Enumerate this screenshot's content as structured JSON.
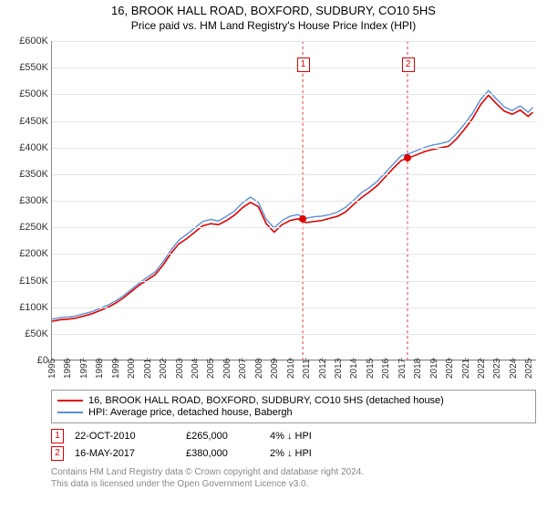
{
  "title": {
    "main": "16, BROOK HALL ROAD, BOXFORD, SUDBURY, CO10 5HS",
    "sub": "Price paid vs. HM Land Registry's House Price Index (HPI)"
  },
  "chart": {
    "y_axis": {
      "min": 0,
      "max": 600000,
      "step": 50000,
      "labels": [
        "£0",
        "£50K",
        "£100K",
        "£150K",
        "£200K",
        "£250K",
        "£300K",
        "£350K",
        "£400K",
        "£450K",
        "£500K",
        "£550K",
        "£600K"
      ]
    },
    "x_axis": {
      "min": 1995,
      "max": 2025.5,
      "years": [
        1995,
        1996,
        1997,
        1998,
        1999,
        2000,
        2001,
        2002,
        2003,
        2004,
        2005,
        2006,
        2007,
        2008,
        2009,
        2010,
        2011,
        2012,
        2013,
        2014,
        2015,
        2016,
        2017,
        2018,
        2019,
        2020,
        2021,
        2022,
        2023,
        2024,
        2025
      ]
    },
    "grid_color": "#e5e5e5",
    "axis_color": "#888888",
    "background": "#ffffff",
    "series": [
      {
        "name": "property",
        "label": "16, BROOK HALL ROAD, BOXFORD, SUDBURY, CO10 5HS (detached house)",
        "color": "#dd0000",
        "width": 1.6,
        "points": [
          [
            1995,
            72000
          ],
          [
            1995.5,
            75000
          ],
          [
            1996,
            76000
          ],
          [
            1996.5,
            78000
          ],
          [
            1997,
            82000
          ],
          [
            1997.5,
            86000
          ],
          [
            1998,
            92000
          ],
          [
            1998.5,
            98000
          ],
          [
            1999,
            106000
          ],
          [
            1999.5,
            116000
          ],
          [
            2000,
            128000
          ],
          [
            2000.5,
            140000
          ],
          [
            2001,
            150000
          ],
          [
            2001.5,
            160000
          ],
          [
            2002,
            178000
          ],
          [
            2002.5,
            200000
          ],
          [
            2003,
            218000
          ],
          [
            2003.5,
            228000
          ],
          [
            2004,
            240000
          ],
          [
            2004.5,
            252000
          ],
          [
            2005,
            256000
          ],
          [
            2005.5,
            254000
          ],
          [
            2006,
            262000
          ],
          [
            2006.5,
            272000
          ],
          [
            2007,
            286000
          ],
          [
            2007.5,
            296000
          ],
          [
            2008,
            288000
          ],
          [
            2008.5,
            256000
          ],
          [
            2009,
            240000
          ],
          [
            2009.5,
            254000
          ],
          [
            2010,
            262000
          ],
          [
            2010.5,
            265000
          ],
          [
            2011,
            258000
          ],
          [
            2011.5,
            260000
          ],
          [
            2012,
            262000
          ],
          [
            2012.5,
            266000
          ],
          [
            2013,
            270000
          ],
          [
            2013.5,
            278000
          ],
          [
            2014,
            292000
          ],
          [
            2014.5,
            305000
          ],
          [
            2015,
            316000
          ],
          [
            2015.5,
            328000
          ],
          [
            2016,
            344000
          ],
          [
            2016.5,
            360000
          ],
          [
            2017,
            375000
          ],
          [
            2017.5,
            380000
          ],
          [
            2018,
            386000
          ],
          [
            2018.5,
            392000
          ],
          [
            2019,
            396000
          ],
          [
            2019.5,
            399000
          ],
          [
            2020,
            402000
          ],
          [
            2020.5,
            416000
          ],
          [
            2021,
            434000
          ],
          [
            2021.5,
            454000
          ],
          [
            2022,
            480000
          ],
          [
            2022.5,
            498000
          ],
          [
            2023,
            482000
          ],
          [
            2023.5,
            468000
          ],
          [
            2024,
            462000
          ],
          [
            2024.5,
            470000
          ],
          [
            2025,
            458000
          ],
          [
            2025.3,
            466000
          ]
        ]
      },
      {
        "name": "hpi",
        "label": "HPI: Average price, detached house, Babergh",
        "color": "#5b8fd6",
        "width": 1.4,
        "points": [
          [
            1995,
            76000
          ],
          [
            1995.5,
            79000
          ],
          [
            1996,
            80000
          ],
          [
            1996.5,
            82000
          ],
          [
            1997,
            86000
          ],
          [
            1997.5,
            90000
          ],
          [
            1998,
            96000
          ],
          [
            1998.5,
            102000
          ],
          [
            1999,
            110000
          ],
          [
            1999.5,
            120000
          ],
          [
            2000,
            132000
          ],
          [
            2000.5,
            144000
          ],
          [
            2001,
            155000
          ],
          [
            2001.5,
            165000
          ],
          [
            2002,
            184000
          ],
          [
            2002.5,
            206000
          ],
          [
            2003,
            225000
          ],
          [
            2003.5,
            236000
          ],
          [
            2004,
            248000
          ],
          [
            2004.5,
            260000
          ],
          [
            2005,
            264000
          ],
          [
            2005.5,
            261000
          ],
          [
            2006,
            270000
          ],
          [
            2006.5,
            280000
          ],
          [
            2007,
            295000
          ],
          [
            2007.5,
            306000
          ],
          [
            2008,
            296000
          ],
          [
            2008.5,
            264000
          ],
          [
            2009,
            248000
          ],
          [
            2009.5,
            262000
          ],
          [
            2010,
            270000
          ],
          [
            2010.5,
            273000
          ],
          [
            2011,
            266000
          ],
          [
            2011.5,
            269000
          ],
          [
            2012,
            270000
          ],
          [
            2012.5,
            273000
          ],
          [
            2013,
            278000
          ],
          [
            2013.5,
            287000
          ],
          [
            2014,
            300000
          ],
          [
            2014.5,
            314000
          ],
          [
            2015,
            324000
          ],
          [
            2015.5,
            336000
          ],
          [
            2016,
            352000
          ],
          [
            2016.5,
            368000
          ],
          [
            2017,
            384000
          ],
          [
            2017.5,
            388000
          ],
          [
            2018,
            394000
          ],
          [
            2018.5,
            400000
          ],
          [
            2019,
            404000
          ],
          [
            2019.5,
            407000
          ],
          [
            2020,
            411000
          ],
          [
            2020.5,
            426000
          ],
          [
            2021,
            444000
          ],
          [
            2021.5,
            464000
          ],
          [
            2022,
            490000
          ],
          [
            2022.5,
            507000
          ],
          [
            2023,
            491000
          ],
          [
            2023.5,
            476000
          ],
          [
            2024,
            469000
          ],
          [
            2024.5,
            478000
          ],
          [
            2025,
            466000
          ],
          [
            2025.3,
            475000
          ]
        ]
      }
    ],
    "markers": [
      {
        "id": "1",
        "year": 2010.8,
        "value": 265000
      },
      {
        "id": "2",
        "year": 2017.4,
        "value": 380000
      }
    ],
    "marker_line_color": "#dd0000",
    "marker_dot_color": "#dd0000"
  },
  "legend": {
    "series": [
      {
        "color": "#dd0000",
        "label": "16, BROOK HALL ROAD, BOXFORD, SUDBURY, CO10 5HS (detached house)"
      },
      {
        "color": "#5b8fd6",
        "label": "HPI: Average price, detached house, Babergh"
      }
    ]
  },
  "sales": [
    {
      "id": "1",
      "date": "22-OCT-2010",
      "price": "£265,000",
      "delta": "4% ↓ HPI"
    },
    {
      "id": "2",
      "date": "16-MAY-2017",
      "price": "£380,000",
      "delta": "2% ↓ HPI"
    }
  ],
  "attribution": {
    "line1": "Contains HM Land Registry data © Crown copyright and database right 2024.",
    "line2": "This data is licensed under the Open Government Licence v3.0."
  }
}
